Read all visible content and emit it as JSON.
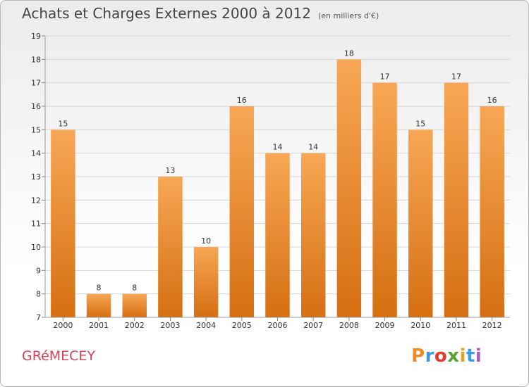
{
  "header": {
    "title": "Achats et Charges Externes 2000 à 2012",
    "subtitle": "(en milliers d'€)"
  },
  "commune": "GRéMECEY",
  "logo": {
    "letters": [
      "P",
      "r",
      "o",
      "x",
      "i",
      "t",
      "i"
    ],
    "colors": [
      "#ef8a25",
      "#3b9be0",
      "#e43b2c",
      "#5aa133",
      "#e9a01c",
      "#3b9be0",
      "#a65fb4"
    ]
  },
  "colors": {
    "bar_light": "#f7a755",
    "bar_dark": "#d56f12",
    "grid": "#d6d6d6",
    "axis_text": "#333333"
  },
  "chart_data": {
    "type": "bar",
    "categories": [
      "2000",
      "2001",
      "2002",
      "2003",
      "2004",
      "2005",
      "2006",
      "2007",
      "2008",
      "2009",
      "2010",
      "2011",
      "2012"
    ],
    "values": [
      15,
      8,
      8,
      13,
      10,
      16,
      14,
      14,
      18,
      17,
      15,
      17,
      16
    ],
    "title": "Achats et Charges Externes 2000 à 2012",
    "ylim": [
      7,
      19
    ],
    "yticks": [
      7,
      8,
      9,
      10,
      11,
      12,
      13,
      14,
      15,
      16,
      17,
      18,
      19
    ],
    "grid": true
  }
}
